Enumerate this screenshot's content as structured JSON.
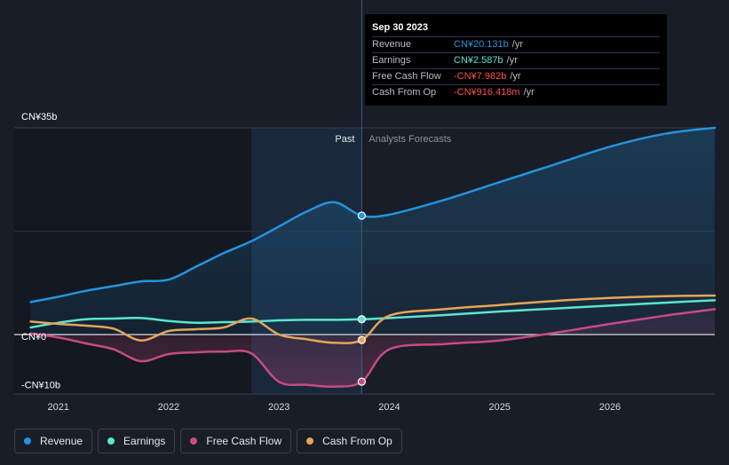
{
  "tooltip": {
    "date": "Sep 30 2023",
    "rows": [
      {
        "label": "Revenue",
        "value": "CN¥20.131b",
        "unit": "/yr",
        "color": "#2394df"
      },
      {
        "label": "Earnings",
        "value": "CN¥2.587b",
        "unit": "/yr",
        "color": "#58e6d2"
      },
      {
        "label": "Free Cash Flow",
        "value": "-CN¥7.982b",
        "unit": "/yr",
        "color": "#ff4d4f"
      },
      {
        "label": "Cash From Op",
        "value": "-CN¥916.418m",
        "unit": "/yr",
        "color": "#ff4d4f"
      }
    ]
  },
  "labels": {
    "past": "Past",
    "forecast": "Analysts Forecasts"
  },
  "legend": [
    {
      "label": "Revenue",
      "color": "#2394df"
    },
    {
      "label": "Earnings",
      "color": "#58e6d2"
    },
    {
      "label": "Free Cash Flow",
      "color": "#c74a86"
    },
    {
      "label": "Cash From Op",
      "color": "#e5a55a"
    }
  ],
  "chart_data": {
    "type": "line",
    "y_tick_labels": [
      "CN¥35b",
      "CN¥0",
      "-CN¥10b"
    ],
    "y_ticks": [
      35,
      0,
      -10
    ],
    "ylim": [
      -10,
      35
    ],
    "x_tick_labels": [
      "2021",
      "2022",
      "2023",
      "2024",
      "2025",
      "2026"
    ],
    "x_ticks": [
      2021,
      2022,
      2023,
      2024,
      2025,
      2026
    ],
    "xlim": [
      2020.6,
      2026.95
    ],
    "past_end": 2023.75,
    "highlight_start": 2022.75,
    "series": [
      {
        "name": "Revenue",
        "color": "#2394df",
        "x": [
          2020.75,
          2021.0,
          2021.25,
          2021.5,
          2021.75,
          2022.0,
          2022.25,
          2022.5,
          2022.75,
          2023.0,
          2023.25,
          2023.5,
          2023.75,
          2024.0,
          2024.5,
          2025.0,
          2025.5,
          2026.0,
          2026.5,
          2026.95
        ],
        "y": [
          5.5,
          6.4,
          7.4,
          8.2,
          9.0,
          9.3,
          11.5,
          13.8,
          15.8,
          18.3,
          20.8,
          22.4,
          20.131,
          20.3,
          22.8,
          25.8,
          28.8,
          31.8,
          34.0,
          35.0
        ]
      },
      {
        "name": "Earnings",
        "color": "#58e6d2",
        "x": [
          2020.75,
          2021.0,
          2021.25,
          2021.5,
          2021.75,
          2022.0,
          2022.25,
          2022.5,
          2022.75,
          2023.0,
          2023.25,
          2023.5,
          2023.75,
          2024.0,
          2024.5,
          2025.0,
          2025.5,
          2026.0,
          2026.5,
          2026.95
        ],
        "y": [
          1.2,
          2.0,
          2.6,
          2.7,
          2.8,
          2.3,
          2.0,
          2.1,
          2.2,
          2.4,
          2.5,
          2.5,
          2.587,
          2.8,
          3.3,
          3.9,
          4.4,
          4.9,
          5.4,
          5.8
        ]
      },
      {
        "name": "Free Cash Flow",
        "color": "#c74a86",
        "x": [
          2020.75,
          2021.0,
          2021.25,
          2021.5,
          2021.75,
          2022.0,
          2022.25,
          2022.5,
          2022.75,
          2023.0,
          2023.25,
          2023.5,
          2023.75,
          2024.0,
          2024.5,
          2025.0,
          2025.5,
          2026.0,
          2026.5,
          2026.95
        ],
        "y": [
          0.2,
          -0.5,
          -1.5,
          -2.5,
          -4.5,
          -3.3,
          -3.0,
          -2.9,
          -3.2,
          -8.0,
          -8.5,
          -8.8,
          -7.982,
          -2.5,
          -1.6,
          -1.0,
          0.3,
          1.8,
          3.2,
          4.3
        ]
      },
      {
        "name": "Cash From Op",
        "color": "#e5a55a",
        "x": [
          2020.75,
          2021.0,
          2021.25,
          2021.5,
          2021.75,
          2022.0,
          2022.25,
          2022.5,
          2022.75,
          2023.0,
          2023.25,
          2023.5,
          2023.75,
          2024.0,
          2024.5,
          2025.0,
          2025.5,
          2026.0,
          2026.5,
          2026.95
        ],
        "y": [
          2.2,
          1.8,
          1.5,
          1.0,
          -1.0,
          0.6,
          0.9,
          1.2,
          2.7,
          0.0,
          -0.8,
          -1.4,
          -0.916,
          3.2,
          4.3,
          5.0,
          5.7,
          6.2,
          6.5,
          6.6
        ]
      }
    ],
    "markers_at": 2023.75
  }
}
